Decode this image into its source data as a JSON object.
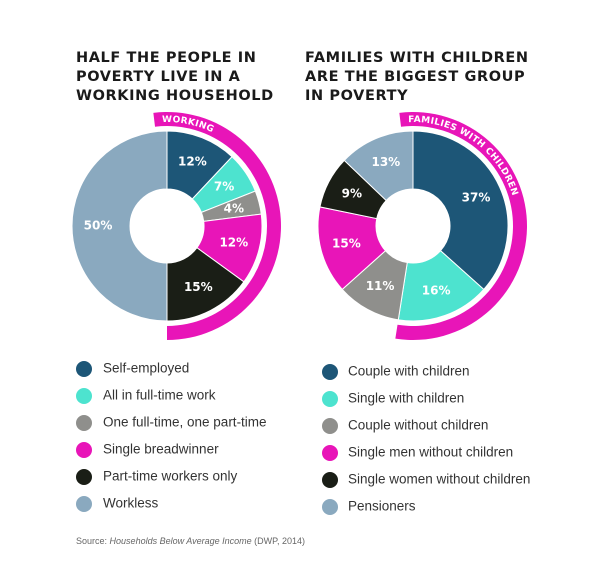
{
  "chart_data": [
    {
      "type": "donut",
      "title": [
        "HALF THE PEOPLE IN",
        "POVERTY LIVE IN A",
        "WORKING HOUSEHOLD"
      ],
      "annotation": "WORKING",
      "categories": [
        "Self-employed",
        "All in full-time work",
        "One full-time, one part-time",
        "Single breadwinner",
        "Part-time workers only",
        "Workless"
      ],
      "values": [
        12,
        7,
        4,
        12,
        15,
        50
      ],
      "value_labels": [
        "12%",
        "7%",
        "4%",
        "12%",
        "15%",
        "50%"
      ],
      "colors": [
        "#1d5677",
        "#4de3cf",
        "#8f8f8c",
        "#e815b8",
        "#1a1e16",
        "#8aa9bf"
      ],
      "highlight_color": "#e815b8"
    },
    {
      "type": "donut",
      "title": [
        "FAMILIES WITH CHILDREN",
        "ARE THE BIGGEST GROUP",
        "IN POVERTY"
      ],
      "annotation": "FAMILIES WITH CHILDREN",
      "categories": [
        "Couple with children",
        "Single with children",
        "Couple without children",
        "Single men without children",
        "Single women without children",
        "Pensioners"
      ],
      "values": [
        37,
        16,
        11,
        15,
        9,
        13
      ],
      "value_labels": [
        "37%",
        "16%",
        "11%",
        "15%",
        "9%",
        "13%"
      ],
      "colors": [
        "#1d5677",
        "#4de3cf",
        "#8f8f8c",
        "#e815b8",
        "#1a1e16",
        "#8aa9bf"
      ],
      "highlight_color": "#e815b8"
    }
  ],
  "source": {
    "prefix": "Source:",
    "title": "Households Below Average Income",
    "suffix": "(DWP, 2014)"
  }
}
